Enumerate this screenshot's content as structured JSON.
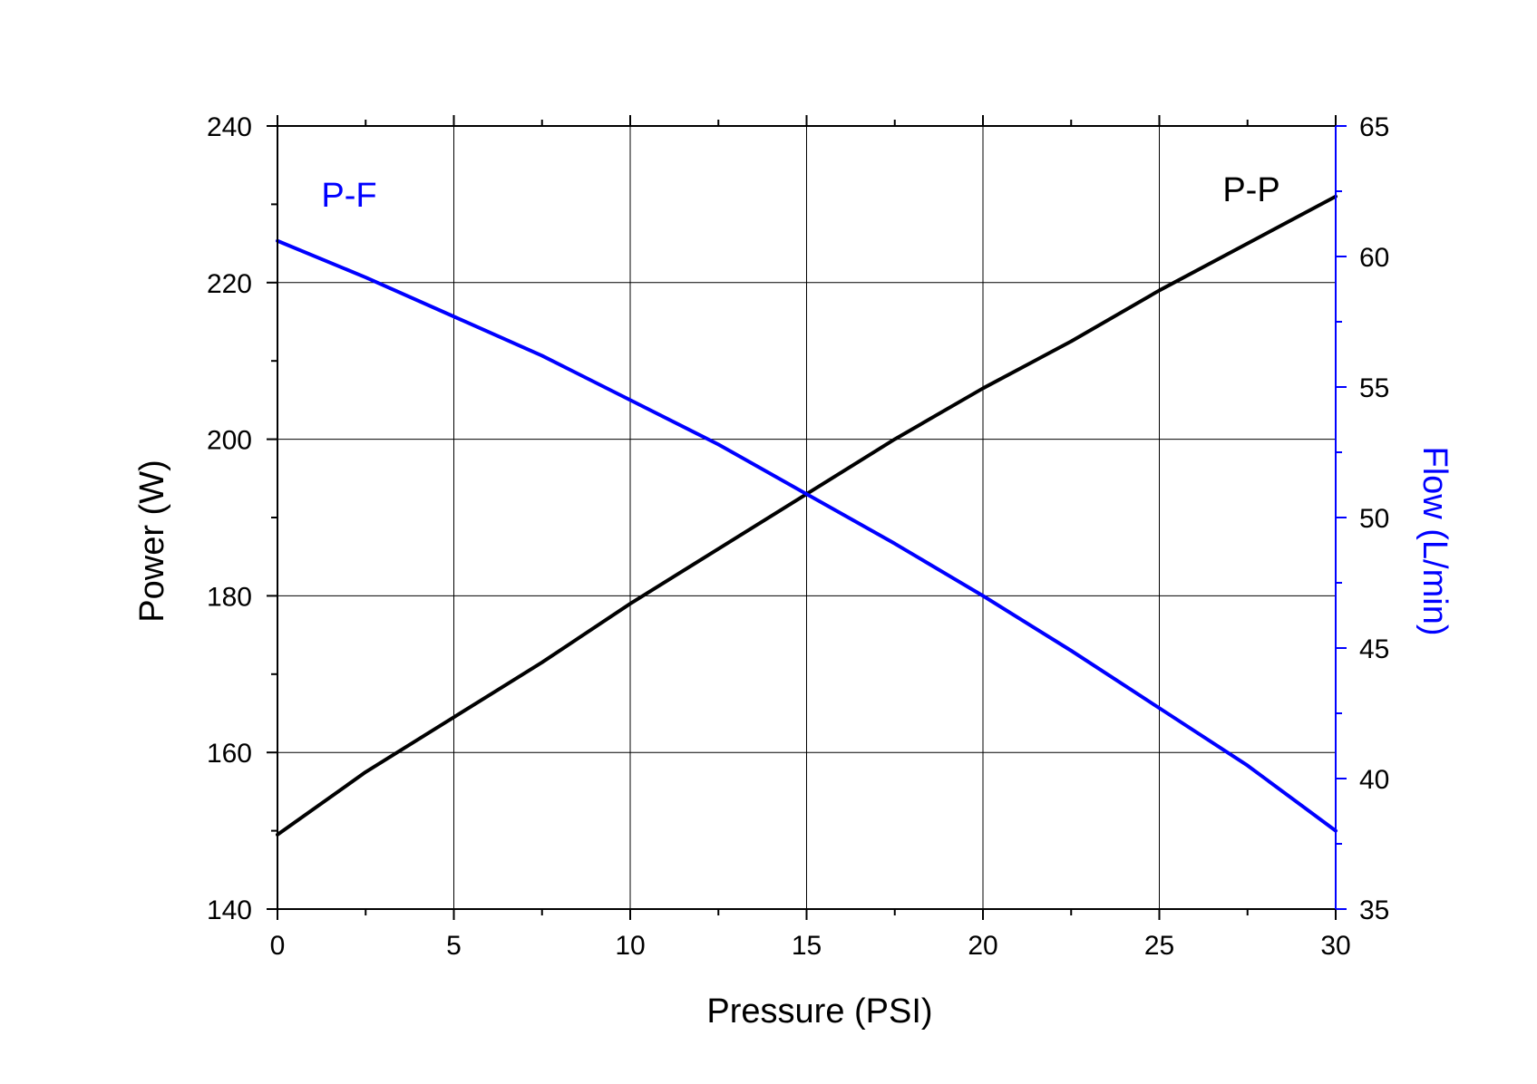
{
  "chart_data": {
    "type": "line",
    "title": "",
    "xlabel": "Pressure (PSI)",
    "ylabel_left": "Power (W)",
    "ylabel_right": "Flow (L/min)",
    "xlim": [
      0,
      30
    ],
    "ylim_left": [
      140,
      240
    ],
    "ylim_right": [
      35,
      65
    ],
    "x_ticks": [
      0,
      5,
      10,
      15,
      20,
      25,
      30
    ],
    "y_ticks_left": [
      140,
      160,
      180,
      200,
      220,
      240
    ],
    "y_ticks_right": [
      35,
      40,
      45,
      50,
      55,
      60,
      65
    ],
    "grid": true,
    "colors": {
      "left_axis": "#000000",
      "right_axis": "#0000ff",
      "grid": "#000000"
    },
    "series": [
      {
        "name": "P-P",
        "axis": "left",
        "color": "#000000",
        "x": [
          0,
          2.5,
          5,
          7.5,
          10,
          12.5,
          15,
          17.5,
          20,
          22.5,
          25,
          27.5,
          30
        ],
        "y": [
          149.5,
          157.5,
          164.5,
          171.5,
          179,
          186,
          193,
          200,
          206.5,
          212.5,
          219,
          225,
          231
        ]
      },
      {
        "name": "P-F",
        "axis": "right",
        "color": "#0000ff",
        "x": [
          0,
          2.5,
          5,
          7.5,
          10,
          12.5,
          15,
          17.5,
          20,
          22.5,
          25,
          27.5,
          30
        ],
        "y": [
          60.6,
          59.2,
          57.7,
          56.2,
          54.5,
          52.8,
          50.9,
          49.0,
          47.0,
          44.9,
          42.7,
          40.5,
          38.0
        ]
      }
    ],
    "annotations": [
      {
        "text": "P-F",
        "color": "#0000ff"
      },
      {
        "text": "P-P",
        "color": "#000000"
      }
    ]
  }
}
